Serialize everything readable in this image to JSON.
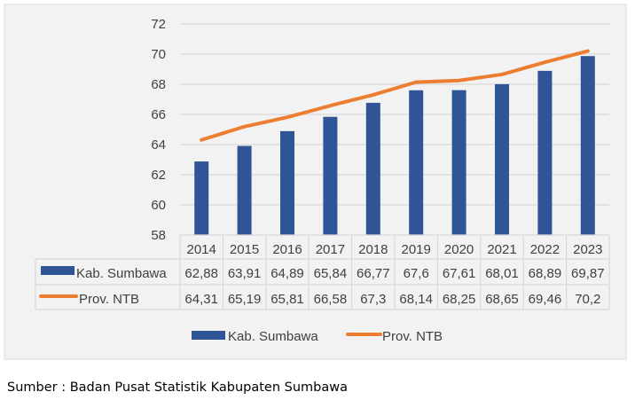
{
  "chart_data": {
    "type": "bar",
    "categories": [
      "2014",
      "2015",
      "2016",
      "2017",
      "2018",
      "2019",
      "2020",
      "2021",
      "2022",
      "2023"
    ],
    "series": [
      {
        "name": "Kab. Sumbawa",
        "type": "bar",
        "color": "#2F5597",
        "values": [
          62.88,
          63.91,
          64.89,
          65.84,
          66.77,
          67.6,
          67.61,
          68.01,
          68.89,
          69.87
        ],
        "labels": [
          "62,88",
          "63,91",
          "64,89",
          "65,84",
          "66,77",
          "67,6",
          "67,61",
          "68,01",
          "68,89",
          "69,87"
        ]
      },
      {
        "name": "Prov. NTB",
        "type": "line",
        "color": "#ED7D31",
        "values": [
          64.31,
          65.19,
          65.81,
          66.58,
          67.3,
          68.14,
          68.25,
          68.65,
          69.46,
          70.2
        ],
        "labels": [
          "64,31",
          "65,19",
          "65,81",
          "66,58",
          "67,3",
          "68,14",
          "68,25",
          "68,65",
          "69,46",
          "70,2"
        ]
      }
    ],
    "ylim": [
      58,
      72
    ],
    "yticks": [
      "58",
      "60",
      "62",
      "64",
      "66",
      "68",
      "70",
      "72"
    ],
    "grid": true,
    "data_table": true,
    "legend": "bottom"
  },
  "source": "Sumber : Badan Pusat Statistik Kabupaten Sumbawa"
}
